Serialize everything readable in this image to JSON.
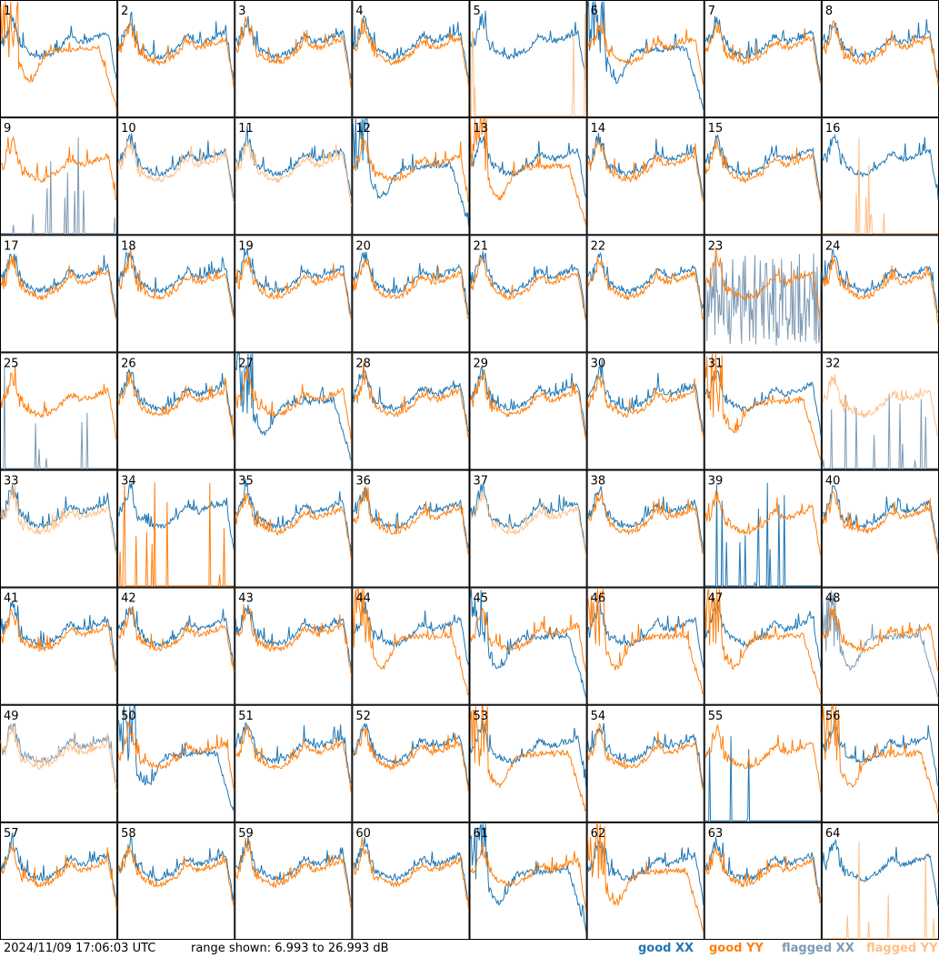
{
  "footer": {
    "timestamp": "2024/11/09 17:06:03 UTC",
    "range_text": "range shown: 6.993 to 26.993 dB"
  },
  "legend": [
    {
      "key": "good_xx",
      "label": "good XX",
      "color": "#1f77b4"
    },
    {
      "key": "good_yy",
      "label": "good YY",
      "color": "#ff7f0e"
    },
    {
      "key": "flagged_xx",
      "label": "flagged XX",
      "color": "#7f9bb4"
    },
    {
      "key": "flagged_yy",
      "label": "flagged YY",
      "color": "#ffbf86"
    }
  ],
  "chart_data": {
    "type": "line",
    "title": "",
    "ylim": [
      6.993,
      26.993
    ],
    "y_unit": "dB",
    "grid": {
      "rows": 8,
      "cols": 8
    },
    "panels": [
      {
        "id": "1",
        "xx": "good",
        "yy": "good",
        "yy_shape": "drop"
      },
      {
        "id": "2",
        "xx": "good",
        "yy": "good"
      },
      {
        "id": "3",
        "xx": "good",
        "yy": "good"
      },
      {
        "id": "4",
        "xx": "good",
        "yy": "good"
      },
      {
        "id": "5",
        "xx": "good",
        "yy": "flagged_dead"
      },
      {
        "id": "6",
        "xx": "good",
        "yy": "good",
        "xx_shape": "drop"
      },
      {
        "id": "7",
        "xx": "good",
        "yy": "good"
      },
      {
        "id": "8",
        "xx": "good",
        "yy": "good"
      },
      {
        "id": "9",
        "xx": "flagged_dead",
        "yy": "good"
      },
      {
        "id": "10",
        "xx": "good",
        "yy": "flagged"
      },
      {
        "id": "11",
        "xx": "good",
        "yy": "flagged"
      },
      {
        "id": "12",
        "xx": "good",
        "yy": "good",
        "xx_shape": "drop"
      },
      {
        "id": "13",
        "xx": "good",
        "yy": "good",
        "yy_shape": "drop"
      },
      {
        "id": "14",
        "xx": "good",
        "yy": "good"
      },
      {
        "id": "15",
        "xx": "good",
        "yy": "good"
      },
      {
        "id": "16",
        "xx": "good",
        "yy": "flagged_dead"
      },
      {
        "id": "17",
        "xx": "good",
        "yy": "good"
      },
      {
        "id": "18",
        "xx": "good",
        "yy": "good"
      },
      {
        "id": "19",
        "xx": "good",
        "yy": "good"
      },
      {
        "id": "20",
        "xx": "good",
        "yy": "good"
      },
      {
        "id": "21",
        "xx": "good",
        "yy": "good"
      },
      {
        "id": "22",
        "xx": "good",
        "yy": "good"
      },
      {
        "id": "23",
        "xx": "flagged_noisy",
        "yy": "good"
      },
      {
        "id": "24",
        "xx": "good",
        "yy": "good"
      },
      {
        "id": "25",
        "xx": "flagged_dead",
        "yy": "good"
      },
      {
        "id": "26",
        "xx": "good",
        "yy": "good"
      },
      {
        "id": "27",
        "xx": "good",
        "yy": "good",
        "xx_shape": "drop"
      },
      {
        "id": "28",
        "xx": "good",
        "yy": "good"
      },
      {
        "id": "29",
        "xx": "good",
        "yy": "good"
      },
      {
        "id": "30",
        "xx": "good",
        "yy": "good"
      },
      {
        "id": "31",
        "xx": "good",
        "yy": "good",
        "yy_shape": "drop"
      },
      {
        "id": "32",
        "xx": "flagged_dead",
        "yy": "flagged"
      },
      {
        "id": "33",
        "xx": "good",
        "yy": "flagged"
      },
      {
        "id": "34",
        "xx": "good",
        "yy": "good_dead"
      },
      {
        "id": "35",
        "xx": "good",
        "yy": "good"
      },
      {
        "id": "36",
        "xx": "good",
        "yy": "good"
      },
      {
        "id": "37",
        "xx": "good",
        "yy": "flagged"
      },
      {
        "id": "38",
        "xx": "good",
        "yy": "good"
      },
      {
        "id": "39",
        "xx": "good_dead",
        "yy": "good"
      },
      {
        "id": "40",
        "xx": "good",
        "yy": "good"
      },
      {
        "id": "41",
        "xx": "good",
        "yy": "good"
      },
      {
        "id": "42",
        "xx": "good",
        "yy": "good"
      },
      {
        "id": "43",
        "xx": "good",
        "yy": "good"
      },
      {
        "id": "44",
        "xx": "good",
        "yy": "good",
        "yy_shape": "drop"
      },
      {
        "id": "45",
        "xx": "good",
        "yy": "good",
        "xx_shape": "drop"
      },
      {
        "id": "46",
        "xx": "good",
        "yy": "good",
        "yy_shape": "drop"
      },
      {
        "id": "47",
        "xx": "good",
        "yy": "good",
        "yy_shape": "drop"
      },
      {
        "id": "48",
        "xx": "flagged",
        "yy": "good",
        "xx_shape": "drop"
      },
      {
        "id": "49",
        "xx": "flagged",
        "yy": "flagged"
      },
      {
        "id": "50",
        "xx": "good",
        "yy": "good",
        "xx_shape": "drop"
      },
      {
        "id": "51",
        "xx": "good",
        "yy": "good"
      },
      {
        "id": "52",
        "xx": "good",
        "yy": "good"
      },
      {
        "id": "53",
        "xx": "good",
        "yy": "good",
        "yy_shape": "drop"
      },
      {
        "id": "54",
        "xx": "good",
        "yy": "good"
      },
      {
        "id": "55",
        "xx": "good_dead",
        "yy": "good"
      },
      {
        "id": "56",
        "xx": "good",
        "yy": "good",
        "yy_shape": "drop"
      },
      {
        "id": "57",
        "xx": "good",
        "yy": "good"
      },
      {
        "id": "58",
        "xx": "good",
        "yy": "good"
      },
      {
        "id": "59",
        "xx": "good",
        "yy": "good"
      },
      {
        "id": "60",
        "xx": "good",
        "yy": "good"
      },
      {
        "id": "61",
        "xx": "good",
        "yy": "good",
        "xx_shape": "drop"
      },
      {
        "id": "62",
        "xx": "good",
        "yy": "good",
        "yy_shape": "drop"
      },
      {
        "id": "63",
        "xx": "good",
        "yy": "good"
      },
      {
        "id": "64",
        "xx": "good",
        "yy": "flagged_dead"
      }
    ]
  }
}
